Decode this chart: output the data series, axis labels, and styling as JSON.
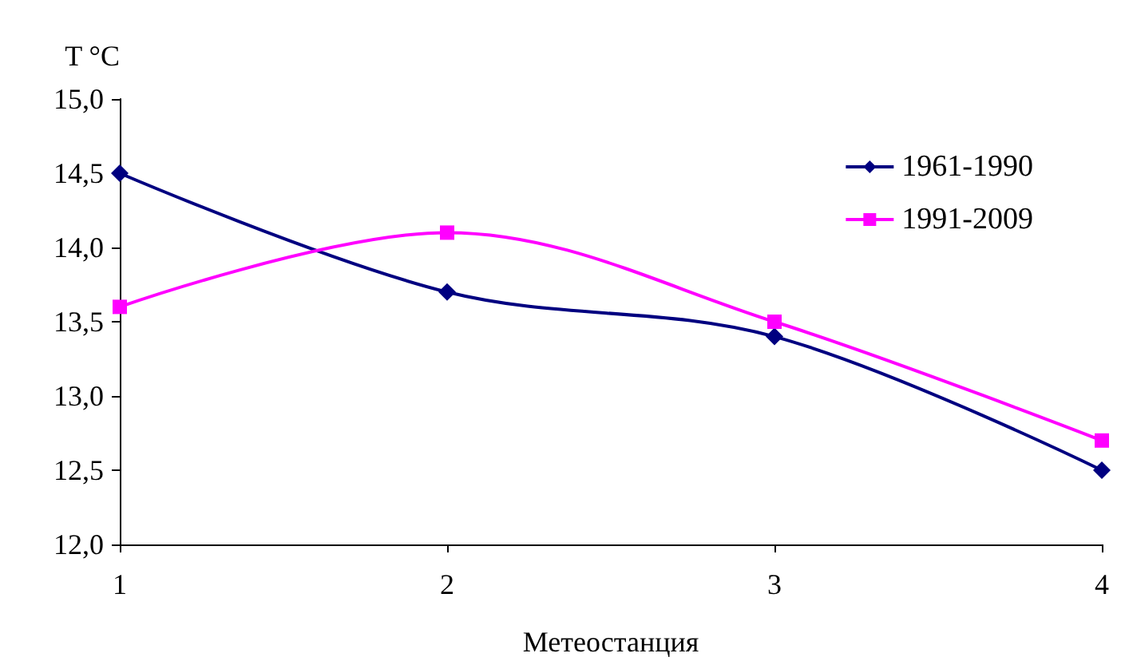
{
  "chart_data": {
    "type": "line",
    "ylabel": "T °C",
    "xlabel": "Метеостанция",
    "categories": [
      "1",
      "2",
      "3",
      "4"
    ],
    "series": [
      {
        "name": "1961-1990",
        "color": "#000080",
        "marker": "diamond",
        "values": [
          14.5,
          13.7,
          13.4,
          12.5
        ]
      },
      {
        "name": "1991-2009",
        "color": "#ff00ff",
        "marker": "square",
        "values": [
          13.6,
          14.1,
          13.5,
          12.7
        ]
      }
    ],
    "ylim": [
      12,
      15
    ],
    "yticks": [
      {
        "value": 12,
        "label": "12,0"
      },
      {
        "value": 12.5,
        "label": "12,5"
      },
      {
        "value": 13,
        "label": "13,0"
      },
      {
        "value": 13.5,
        "label": "13,5"
      },
      {
        "value": 14,
        "label": "14,0"
      },
      {
        "value": 14.5,
        "label": "14,5"
      },
      {
        "value": 15,
        "label": "15,0"
      }
    ],
    "grid": false,
    "legend": "top right",
    "line_style": "solid"
  }
}
